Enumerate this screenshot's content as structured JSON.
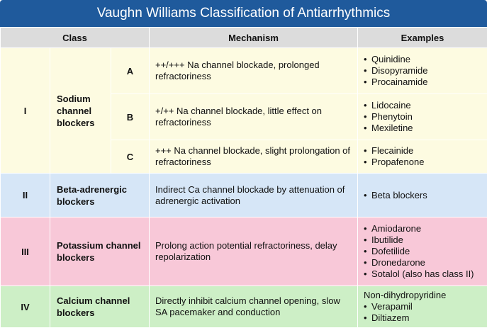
{
  "title": "Vaughn Williams Classification of Antiarrhythmics",
  "headers": {
    "class": "Class",
    "mechanism": "Mechanism",
    "examples": "Examples"
  },
  "classes": [
    {
      "numeral": "I",
      "name": "Sodium channel blockers",
      "color": "#fdfbe1",
      "subclasses": [
        {
          "label": "A",
          "mechanism": "++/+++ Na channel blockade, prolonged refractoriness",
          "examples": [
            "Quinidine",
            "Disopyramide",
            "Procainamide"
          ]
        },
        {
          "label": "B",
          "mechanism": "+/++ Na channel blockade, little effect on refractoriness",
          "examples": [
            "Lidocaine",
            "Phenytoin",
            "Mexiletine"
          ]
        },
        {
          "label": "C",
          "mechanism": "+++ Na channel blockade, slight prolongation of refractoriness",
          "examples": [
            "Flecainide",
            "Propafenone"
          ]
        }
      ]
    },
    {
      "numeral": "II",
      "name": "Beta-adrenergic blockers",
      "color": "#d6e6f7",
      "mechanism": "Indirect Ca channel blockade by attenuation of adrenergic activation",
      "examples": [
        "Beta blockers"
      ]
    },
    {
      "numeral": "III",
      "name": "Potassium channel blockers",
      "color": "#f8c8d8",
      "mechanism": "Prolong action potential refractoriness, delay repolarization",
      "examples": [
        "Amiodarone",
        "Ibutilide",
        "Dofetilide",
        "Dronedarone",
        "Sotalol (also has class II)"
      ]
    },
    {
      "numeral": "IV",
      "name": "Calcium channel blockers",
      "color": "#cdefc6",
      "mechanism": "Directly inhibit calcium channel opening, slow SA pacemaker and conduction",
      "examples_note": "Non-dihydropyridine",
      "examples": [
        "Verapamil",
        "Diltiazem"
      ]
    }
  ],
  "bullet": "•",
  "header_color": "#1f5a9c"
}
